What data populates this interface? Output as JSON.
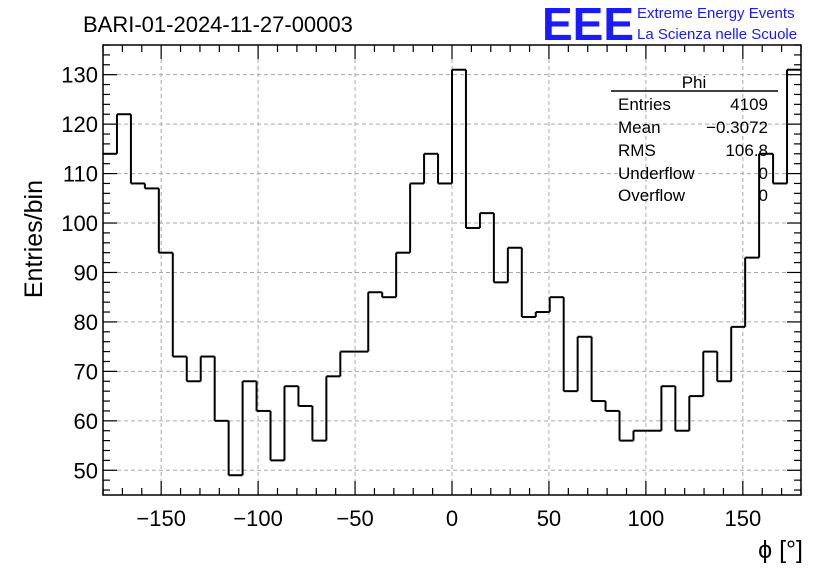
{
  "chart_data": {
    "type": "histogram",
    "title": "BARI-01-2024-11-27-00003",
    "xlabel": "ϕ [°]",
    "ylabel": "Entries/bin",
    "xlim": [
      -180,
      180
    ],
    "ylim": [
      45,
      136
    ],
    "bin_edges_start": -180,
    "bin_width": 7.2,
    "values": [
      114,
      122,
      108,
      107,
      94,
      73,
      68,
      73,
      60,
      49,
      68,
      62,
      52,
      67,
      63,
      56,
      69,
      74,
      74,
      86,
      85,
      94,
      108,
      114,
      108,
      131,
      99,
      102,
      88,
      95,
      81,
      82,
      85,
      66,
      77,
      64,
      62,
      56,
      58,
      58,
      67,
      58,
      65,
      74,
      68,
      79,
      93,
      114,
      108,
      131
    ],
    "x_ticks": [
      -150,
      -100,
      -50,
      0,
      50,
      100,
      150
    ],
    "y_ticks": [
      50,
      60,
      70,
      80,
      90,
      100,
      110,
      120,
      130
    ],
    "grid": true,
    "legend": "none",
    "stats_box": {
      "title": "Phi",
      "rows": [
        {
          "label": "Entries",
          "value": "4109"
        },
        {
          "label": "Mean",
          "value": "−0.3072"
        },
        {
          "label": "RMS",
          "value": "106.8"
        },
        {
          "label": "Underflow",
          "value": "0"
        },
        {
          "label": "Overflow",
          "value": "0"
        }
      ]
    }
  },
  "logo": {
    "mark": "EEE",
    "line1": "Extreme Energy Events",
    "line2": "La Scienza nelle Scuole",
    "color": "#1a1aff"
  }
}
